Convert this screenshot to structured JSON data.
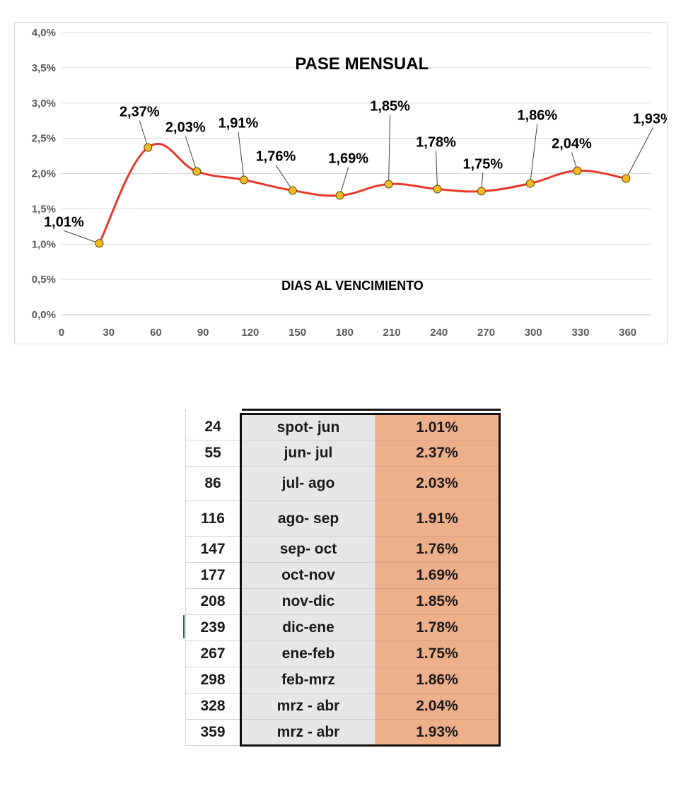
{
  "chart_data": {
    "type": "line",
    "title": "PASE MENSUAL",
    "xlabel": "DIAS AL VENCIMIENTO",
    "ylabel": "",
    "xlim": [
      0,
      375
    ],
    "ylim": [
      0,
      0.04
    ],
    "x_ticks": [
      "0",
      "30",
      "60",
      "90",
      "120",
      "150",
      "180",
      "210",
      "240",
      "270",
      "300",
      "330",
      "360"
    ],
    "y_ticks": [
      "0,0%",
      "0,5%",
      "1,0%",
      "1,5%",
      "2,0%",
      "2,5%",
      "3,0%",
      "3,5%",
      "4,0%"
    ],
    "grid": true,
    "legend": "none",
    "line_color": "#e8392a",
    "marker_color": "#f5b921",
    "series": [
      {
        "x": [
          24,
          55,
          86,
          116,
          147,
          177,
          208,
          239,
          267,
          298,
          328,
          359
        ],
        "values": [
          0.0101,
          0.0237,
          0.0203,
          0.0191,
          0.0176,
          0.0169,
          0.0185,
          0.0178,
          0.0175,
          0.0186,
          0.0204,
          0.0193
        ],
        "labels": [
          "1,01%",
          "2,37%",
          "2,03%",
          "1,91%",
          "1,76%",
          "1,69%",
          "1,85%",
          "1,78%",
          "1,75%",
          "1,86%",
          "2,04%",
          "1,93%"
        ]
      }
    ]
  },
  "table": {
    "rows": [
      {
        "days": "24",
        "period": "spot- jun",
        "rate": "1.01%"
      },
      {
        "days": "55",
        "period": "jun- jul",
        "rate": "2.37%"
      },
      {
        "days": "86",
        "period": "jul- ago",
        "rate": "2.03%"
      },
      {
        "days": "116",
        "period": "ago- sep",
        "rate": "1.91%"
      },
      {
        "days": "147",
        "period": "sep- oct",
        "rate": "1.76%"
      },
      {
        "days": "177",
        "period": "oct-nov",
        "rate": "1.69%"
      },
      {
        "days": "208",
        "period": "nov-dic",
        "rate": "1.85%"
      },
      {
        "days": "239",
        "period": "dic-ene",
        "rate": "1.78%"
      },
      {
        "days": "267",
        "period": "ene-feb",
        "rate": "1.75%"
      },
      {
        "days": "298",
        "period": "feb-mrz",
        "rate": "1.86%"
      },
      {
        "days": "328",
        "period": "mrz - abr",
        "rate": "2.04%"
      },
      {
        "days": "359",
        "period": "mrz - abr",
        "rate": "1.93%"
      }
    ],
    "colors": {
      "period_bg": "#e7e7e7",
      "rate_bg": "#eeb08b"
    }
  }
}
